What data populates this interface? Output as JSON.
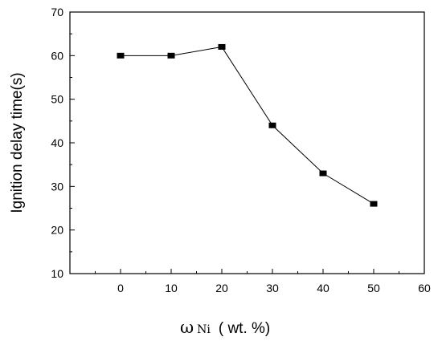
{
  "chart_data": {
    "type": "line",
    "x": [
      0,
      10,
      20,
      30,
      40,
      50
    ],
    "series": [
      {
        "values": [
          60,
          60,
          62,
          44,
          33,
          26
        ]
      }
    ],
    "marker": "square",
    "xlim": [
      -10,
      60
    ],
    "ylim": [
      10,
      70
    ],
    "xticks": [
      "0",
      "10",
      "20",
      "30",
      "40",
      "50",
      "60"
    ],
    "yticks": [
      "10",
      "20",
      "30",
      "40",
      "50",
      "60",
      "70"
    ],
    "ylabel": "Ignition delay time(s)",
    "xlabel": {
      "symbol": "ω",
      "subscript": "Ni",
      "unit": "( wt. %)"
    },
    "grid": false,
    "line_color": "#000000"
  }
}
